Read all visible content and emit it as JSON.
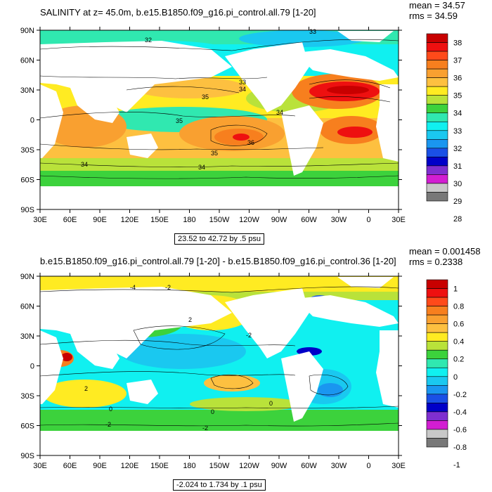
{
  "panels": [
    {
      "title": "SALINITY at z=  45.0m, b.e15.B1850.f09_g16.pi_control.all.79 [1-20]",
      "stats": [
        "mean = 34.57",
        "rms = 34.59"
      ],
      "caption": "23.52 to 42.72 by .5 psu",
      "lat_labels": [
        "90N",
        "60N",
        "30N",
        "0",
        "30S",
        "60S",
        "90S"
      ],
      "lon_labels": [
        "30E",
        "60E",
        "90E",
        "120E",
        "150E",
        "180",
        "150W",
        "120W",
        "90W",
        "60W",
        "30W",
        "0",
        "30E"
      ],
      "colorbar_labels": [
        "38",
        "37",
        "36",
        "35",
        "34",
        "33",
        "32",
        "31",
        "30",
        "29",
        "28"
      ],
      "colorbar_colors": [
        "#c80000",
        "#ee1010",
        "#ff4a1a",
        "#f77f1e",
        "#f9a030",
        "#fdc040",
        "#ffeb22",
        "#b9e23a",
        "#3cd23c",
        "#30e8b0",
        "#10f0f0",
        "#1ac8f0",
        "#1a96f0",
        "#1a50e6",
        "#0000c8",
        "#7f2fd0",
        "#d21ed2",
        "#c8c8c8",
        "#787878"
      ],
      "contour_labels": [
        "32",
        "33",
        "33",
        "34",
        "35",
        "35",
        "35",
        "36",
        "34",
        "34",
        "34"
      ]
    },
    {
      "title": "b.e15.B1850.f09_g16.pi_control.all.79 [1-20] - b.e15.B1850.f09_g16.pi_control.36 [1-20]",
      "stats": [
        "mean = 0.001458",
        "rms = 0.2338"
      ],
      "caption": "-2.024 to 1.734 by .1 psu",
      "lat_labels": [
        "90N",
        "60N",
        "30N",
        "0",
        "30S",
        "60S",
        "90S"
      ],
      "lon_labels": [
        "30E",
        "60E",
        "90E",
        "120E",
        "150E",
        "180",
        "150W",
        "120W",
        "90W",
        "60W",
        "30W",
        "0",
        "30E"
      ],
      "colorbar_labels": [
        "1",
        "0.8",
        "0.6",
        "0.4",
        "0.2",
        "0",
        "-0.2",
        "-0.4",
        "-0.6",
        "-0.8",
        "-1"
      ],
      "colorbar_colors": [
        "#c80000",
        "#ee1010",
        "#ff4a1a",
        "#f77f1e",
        "#f9a030",
        "#fdc040",
        "#ffeb22",
        "#b9e23a",
        "#3cd23c",
        "#30e8b0",
        "#10f0f0",
        "#1ac8f0",
        "#1a96f0",
        "#1a50e6",
        "#0000c8",
        "#7f2fd0",
        "#d21ed2",
        "#c8c8c8",
        "#787878"
      ],
      "contour_labels": [
        "-4",
        "-2",
        "2",
        "2",
        "0",
        "0",
        "-2",
        "-2",
        "0",
        "-2"
      ]
    }
  ]
}
